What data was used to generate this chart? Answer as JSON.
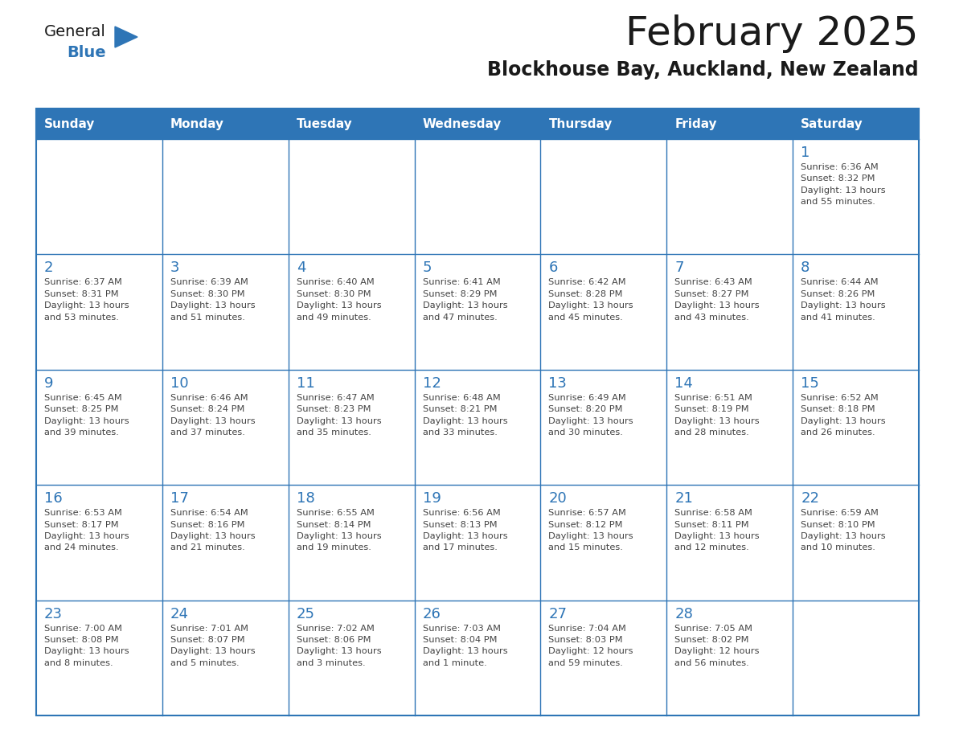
{
  "title": "February 2025",
  "subtitle": "Blockhouse Bay, Auckland, New Zealand",
  "days_of_week": [
    "Sunday",
    "Monday",
    "Tuesday",
    "Wednesday",
    "Thursday",
    "Friday",
    "Saturday"
  ],
  "header_bg": "#2E75B6",
  "header_text_color": "#FFFFFF",
  "cell_bg": "#FFFFFF",
  "border_color": "#2E75B6",
  "day_number_color": "#2E75B6",
  "text_color": "#444444",
  "logo_general_color": "#1a1a1a",
  "logo_blue_color": "#2E75B6",
  "title_color": "#1a1a1a",
  "subtitle_color": "#1a1a1a",
  "weeks": [
    [
      {
        "day": null,
        "info": null
      },
      {
        "day": null,
        "info": null
      },
      {
        "day": null,
        "info": null
      },
      {
        "day": null,
        "info": null
      },
      {
        "day": null,
        "info": null
      },
      {
        "day": null,
        "info": null
      },
      {
        "day": 1,
        "info": "Sunrise: 6:36 AM\nSunset: 8:32 PM\nDaylight: 13 hours\nand 55 minutes."
      }
    ],
    [
      {
        "day": 2,
        "info": "Sunrise: 6:37 AM\nSunset: 8:31 PM\nDaylight: 13 hours\nand 53 minutes."
      },
      {
        "day": 3,
        "info": "Sunrise: 6:39 AM\nSunset: 8:30 PM\nDaylight: 13 hours\nand 51 minutes."
      },
      {
        "day": 4,
        "info": "Sunrise: 6:40 AM\nSunset: 8:30 PM\nDaylight: 13 hours\nand 49 minutes."
      },
      {
        "day": 5,
        "info": "Sunrise: 6:41 AM\nSunset: 8:29 PM\nDaylight: 13 hours\nand 47 minutes."
      },
      {
        "day": 6,
        "info": "Sunrise: 6:42 AM\nSunset: 8:28 PM\nDaylight: 13 hours\nand 45 minutes."
      },
      {
        "day": 7,
        "info": "Sunrise: 6:43 AM\nSunset: 8:27 PM\nDaylight: 13 hours\nand 43 minutes."
      },
      {
        "day": 8,
        "info": "Sunrise: 6:44 AM\nSunset: 8:26 PM\nDaylight: 13 hours\nand 41 minutes."
      }
    ],
    [
      {
        "day": 9,
        "info": "Sunrise: 6:45 AM\nSunset: 8:25 PM\nDaylight: 13 hours\nand 39 minutes."
      },
      {
        "day": 10,
        "info": "Sunrise: 6:46 AM\nSunset: 8:24 PM\nDaylight: 13 hours\nand 37 minutes."
      },
      {
        "day": 11,
        "info": "Sunrise: 6:47 AM\nSunset: 8:23 PM\nDaylight: 13 hours\nand 35 minutes."
      },
      {
        "day": 12,
        "info": "Sunrise: 6:48 AM\nSunset: 8:21 PM\nDaylight: 13 hours\nand 33 minutes."
      },
      {
        "day": 13,
        "info": "Sunrise: 6:49 AM\nSunset: 8:20 PM\nDaylight: 13 hours\nand 30 minutes."
      },
      {
        "day": 14,
        "info": "Sunrise: 6:51 AM\nSunset: 8:19 PM\nDaylight: 13 hours\nand 28 minutes."
      },
      {
        "day": 15,
        "info": "Sunrise: 6:52 AM\nSunset: 8:18 PM\nDaylight: 13 hours\nand 26 minutes."
      }
    ],
    [
      {
        "day": 16,
        "info": "Sunrise: 6:53 AM\nSunset: 8:17 PM\nDaylight: 13 hours\nand 24 minutes."
      },
      {
        "day": 17,
        "info": "Sunrise: 6:54 AM\nSunset: 8:16 PM\nDaylight: 13 hours\nand 21 minutes."
      },
      {
        "day": 18,
        "info": "Sunrise: 6:55 AM\nSunset: 8:14 PM\nDaylight: 13 hours\nand 19 minutes."
      },
      {
        "day": 19,
        "info": "Sunrise: 6:56 AM\nSunset: 8:13 PM\nDaylight: 13 hours\nand 17 minutes."
      },
      {
        "day": 20,
        "info": "Sunrise: 6:57 AM\nSunset: 8:12 PM\nDaylight: 13 hours\nand 15 minutes."
      },
      {
        "day": 21,
        "info": "Sunrise: 6:58 AM\nSunset: 8:11 PM\nDaylight: 13 hours\nand 12 minutes."
      },
      {
        "day": 22,
        "info": "Sunrise: 6:59 AM\nSunset: 8:10 PM\nDaylight: 13 hours\nand 10 minutes."
      }
    ],
    [
      {
        "day": 23,
        "info": "Sunrise: 7:00 AM\nSunset: 8:08 PM\nDaylight: 13 hours\nand 8 minutes."
      },
      {
        "day": 24,
        "info": "Sunrise: 7:01 AM\nSunset: 8:07 PM\nDaylight: 13 hours\nand 5 minutes."
      },
      {
        "day": 25,
        "info": "Sunrise: 7:02 AM\nSunset: 8:06 PM\nDaylight: 13 hours\nand 3 minutes."
      },
      {
        "day": 26,
        "info": "Sunrise: 7:03 AM\nSunset: 8:04 PM\nDaylight: 13 hours\nand 1 minute."
      },
      {
        "day": 27,
        "info": "Sunrise: 7:04 AM\nSunset: 8:03 PM\nDaylight: 12 hours\nand 59 minutes."
      },
      {
        "day": 28,
        "info": "Sunrise: 7:05 AM\nSunset: 8:02 PM\nDaylight: 12 hours\nand 56 minutes."
      },
      {
        "day": null,
        "info": null
      }
    ]
  ]
}
